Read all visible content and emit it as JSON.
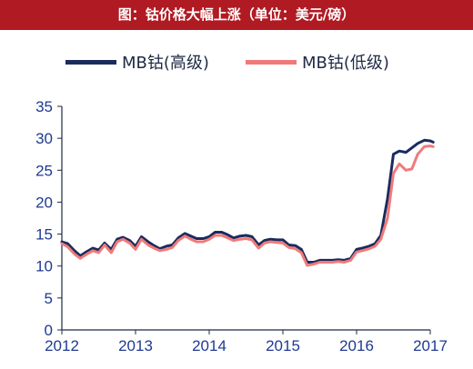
{
  "title": "图：钴价格大幅上涨（单位：美元/磅）",
  "chart_data": {
    "type": "line",
    "title": "图：钴价格大幅上涨（单位：美元/磅）",
    "xlabel": "",
    "ylabel": "",
    "x_ticks": [
      "2012",
      "2013",
      "2014",
      "2015",
      "2016",
      "2017"
    ],
    "y_ticks": [
      "0",
      "5",
      "10",
      "15",
      "20",
      "25",
      "30",
      "35"
    ],
    "xlim": [
      2012,
      2017
    ],
    "ylim": [
      0,
      35
    ],
    "grid": false,
    "legend_position": "top",
    "series": [
      {
        "name": "MB钴(高级)",
        "color": "#1a2b5e",
        "points": [
          [
            2012.0,
            13.8
          ],
          [
            2012.08,
            13.5
          ],
          [
            2012.17,
            12.4
          ],
          [
            2012.25,
            11.6
          ],
          [
            2012.33,
            12.2
          ],
          [
            2012.42,
            12.8
          ],
          [
            2012.5,
            12.5
          ],
          [
            2012.58,
            13.6
          ],
          [
            2012.67,
            12.6
          ],
          [
            2012.75,
            14.2
          ],
          [
            2012.83,
            14.5
          ],
          [
            2012.92,
            14.0
          ],
          [
            2013.0,
            13.1
          ],
          [
            2013.08,
            14.6
          ],
          [
            2013.17,
            13.8
          ],
          [
            2013.25,
            13.2
          ],
          [
            2013.33,
            12.7
          ],
          [
            2013.42,
            13.1
          ],
          [
            2013.5,
            13.3
          ],
          [
            2013.58,
            14.4
          ],
          [
            2013.67,
            15.1
          ],
          [
            2013.75,
            14.7
          ],
          [
            2013.83,
            14.3
          ],
          [
            2013.92,
            14.3
          ],
          [
            2014.0,
            14.6
          ],
          [
            2014.08,
            15.3
          ],
          [
            2014.17,
            15.3
          ],
          [
            2014.25,
            14.9
          ],
          [
            2014.33,
            14.4
          ],
          [
            2014.42,
            14.7
          ],
          [
            2014.5,
            14.8
          ],
          [
            2014.58,
            14.6
          ],
          [
            2014.67,
            13.3
          ],
          [
            2014.75,
            14.0
          ],
          [
            2014.83,
            14.2
          ],
          [
            2014.92,
            14.1
          ],
          [
            2015.0,
            14.1
          ],
          [
            2015.08,
            13.3
          ],
          [
            2015.17,
            13.2
          ],
          [
            2015.25,
            12.6
          ],
          [
            2015.33,
            10.6
          ],
          [
            2015.42,
            10.6
          ],
          [
            2015.5,
            10.9
          ],
          [
            2015.58,
            10.9
          ],
          [
            2015.67,
            10.9
          ],
          [
            2015.75,
            11.0
          ],
          [
            2015.83,
            10.9
          ],
          [
            2015.92,
            11.2
          ],
          [
            2016.0,
            12.6
          ],
          [
            2016.08,
            12.8
          ],
          [
            2016.17,
            13.1
          ],
          [
            2016.25,
            13.5
          ],
          [
            2016.33,
            14.8
          ],
          [
            2016.42,
            20.5
          ],
          [
            2016.5,
            27.5
          ],
          [
            2016.58,
            28.0
          ],
          [
            2016.67,
            27.8
          ],
          [
            2016.75,
            28.5
          ],
          [
            2016.83,
            29.2
          ],
          [
            2016.92,
            29.7
          ],
          [
            2017.0,
            29.6
          ],
          [
            2017.04,
            29.4
          ]
        ]
      },
      {
        "name": "MB钴(低级)",
        "color": "#f07a7a",
        "points": [
          [
            2012.0,
            13.5
          ],
          [
            2012.08,
            13.0
          ],
          [
            2012.17,
            11.9
          ],
          [
            2012.25,
            11.2
          ],
          [
            2012.33,
            11.8
          ],
          [
            2012.42,
            12.4
          ],
          [
            2012.5,
            12.1
          ],
          [
            2012.58,
            13.3
          ],
          [
            2012.67,
            12.1
          ],
          [
            2012.75,
            13.8
          ],
          [
            2012.83,
            14.2
          ],
          [
            2012.92,
            13.6
          ],
          [
            2013.0,
            12.6
          ],
          [
            2013.08,
            14.2
          ],
          [
            2013.17,
            13.3
          ],
          [
            2013.25,
            12.8
          ],
          [
            2013.33,
            12.4
          ],
          [
            2013.42,
            12.6
          ],
          [
            2013.5,
            12.9
          ],
          [
            2013.58,
            14.0
          ],
          [
            2013.67,
            14.7
          ],
          [
            2013.75,
            14.2
          ],
          [
            2013.83,
            13.8
          ],
          [
            2013.92,
            13.8
          ],
          [
            2014.0,
            14.2
          ],
          [
            2014.08,
            14.8
          ],
          [
            2014.17,
            14.8
          ],
          [
            2014.25,
            14.4
          ],
          [
            2014.33,
            14.0
          ],
          [
            2014.42,
            14.2
          ],
          [
            2014.5,
            14.3
          ],
          [
            2014.58,
            14.1
          ],
          [
            2014.67,
            12.8
          ],
          [
            2014.75,
            13.6
          ],
          [
            2014.83,
            13.8
          ],
          [
            2014.92,
            13.7
          ],
          [
            2015.0,
            13.6
          ],
          [
            2015.08,
            12.9
          ],
          [
            2015.17,
            12.7
          ],
          [
            2015.25,
            12.1
          ],
          [
            2015.33,
            10.1
          ],
          [
            2015.42,
            10.3
          ],
          [
            2015.5,
            10.6
          ],
          [
            2015.58,
            10.6
          ],
          [
            2015.67,
            10.6
          ],
          [
            2015.75,
            10.7
          ],
          [
            2015.83,
            10.6
          ],
          [
            2015.92,
            10.9
          ],
          [
            2016.0,
            12.2
          ],
          [
            2016.08,
            12.4
          ],
          [
            2016.17,
            12.7
          ],
          [
            2016.25,
            13.1
          ],
          [
            2016.33,
            14.2
          ],
          [
            2016.42,
            17.5
          ],
          [
            2016.5,
            24.5
          ],
          [
            2016.58,
            26.0
          ],
          [
            2016.67,
            25.0
          ],
          [
            2016.75,
            25.2
          ],
          [
            2016.83,
            27.5
          ],
          [
            2016.92,
            28.7
          ],
          [
            2017.0,
            28.8
          ],
          [
            2017.04,
            28.7
          ]
        ]
      }
    ]
  }
}
